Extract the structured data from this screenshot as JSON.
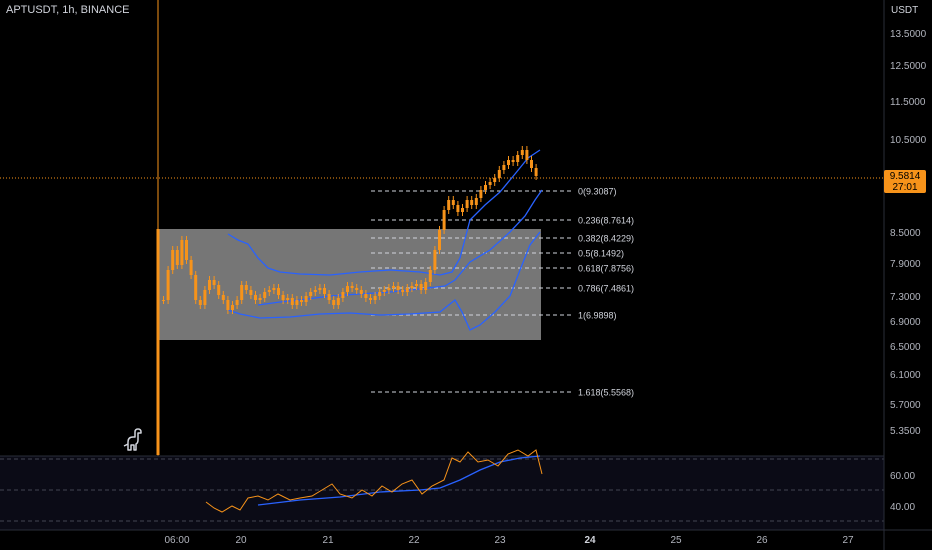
{
  "chart_data": {
    "type": "candlestick",
    "symbol_label": "APTUSDT, 1h, BINANCE",
    "price_axis_unit": "USDT",
    "price_axis_ticks": [
      "13.5000",
      "12.5000",
      "11.5000",
      "10.5000",
      "8.5000",
      "7.9000",
      "7.3000",
      "6.9000",
      "6.5000",
      "6.1000",
      "5.7000",
      "5.3500"
    ],
    "current_price": "9.5814",
    "countdown": "27:01",
    "time_axis_ticks": [
      "06:00",
      "20",
      "21",
      "22",
      "23",
      "24",
      "25",
      "26",
      "27"
    ],
    "fib_levels": [
      {
        "label": "0(9.3087)",
        "price": 9.3087
      },
      {
        "label": "0.236(8.7614)",
        "price": 8.7614
      },
      {
        "label": "0.382(8.4229)",
        "price": 8.4229
      },
      {
        "label": "0.5(8.1492)",
        "price": 8.1492
      },
      {
        "label": "0.618(7.8756)",
        "price": 7.8756
      },
      {
        "label": "0.786(7.4861)",
        "price": 7.4861
      },
      {
        "label": "1(6.9898)",
        "price": 6.9898
      },
      {
        "label": "1.618(5.5568)",
        "price": 5.5568
      }
    ],
    "rsi_axis_ticks": [
      "60.00",
      "40.00"
    ],
    "colors": {
      "candle": "#f7931a",
      "bands": "#2962ff",
      "range_box": "#9e9e9e",
      "price_line": "#f7931a",
      "background": "#000000"
    }
  }
}
